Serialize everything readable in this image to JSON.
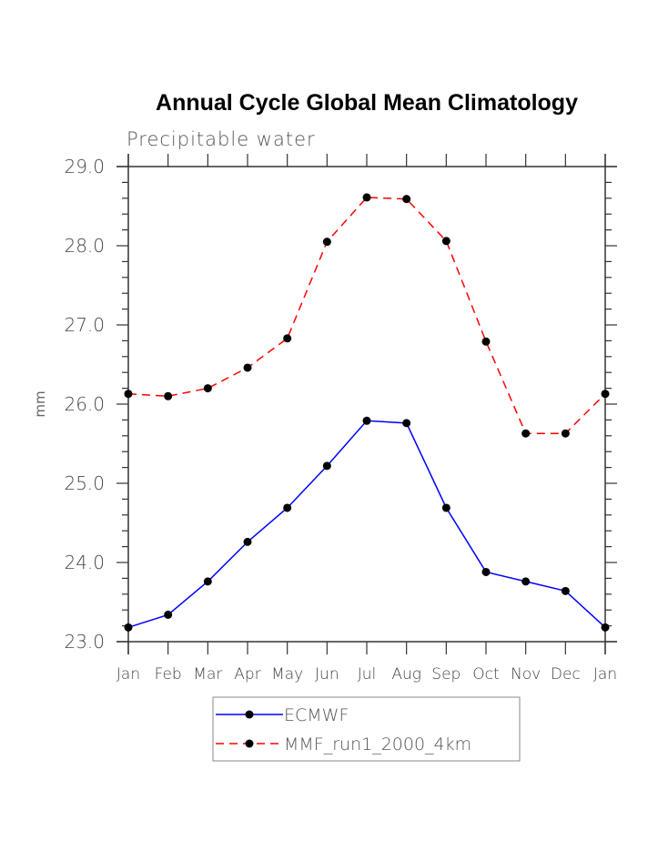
{
  "chart_data": {
    "type": "line",
    "title": "Annual Cycle Global Mean Climatology",
    "subtitle": "Precipitable water",
    "xlabel": "",
    "ylabel": "mm",
    "categories": [
      "Jan",
      "Feb",
      "Mar",
      "Apr",
      "May",
      "Jun",
      "Jul",
      "Aug",
      "Sep",
      "Oct",
      "Nov",
      "Dec",
      "Jan"
    ],
    "ylim": [
      23.0,
      29.0
    ],
    "yticks": [
      23.0,
      24.0,
      25.0,
      26.0,
      27.0,
      28.0,
      29.0
    ],
    "ytick_labels": [
      "23.0",
      "24.0",
      "25.0",
      "26.0",
      "27.0",
      "28.0",
      "29.0"
    ],
    "yminor_step": 0.2,
    "grid": false,
    "legend_position": "bottom-center",
    "series": [
      {
        "name": "ECMWF",
        "color": "#0000ff",
        "line_style": "solid",
        "marker": "filled-circle",
        "values": [
          23.18,
          23.34,
          23.76,
          24.26,
          24.69,
          25.22,
          25.79,
          25.76,
          24.69,
          23.88,
          23.76,
          23.64,
          23.18
        ]
      },
      {
        "name": "MMF_run1_2000_4km",
        "color": "#ff0000",
        "line_style": "dashed",
        "marker": "filled-circle",
        "values": [
          26.13,
          26.1,
          26.2,
          26.46,
          26.83,
          28.05,
          28.61,
          28.59,
          28.06,
          26.79,
          25.63,
          25.63,
          26.13
        ]
      }
    ]
  }
}
